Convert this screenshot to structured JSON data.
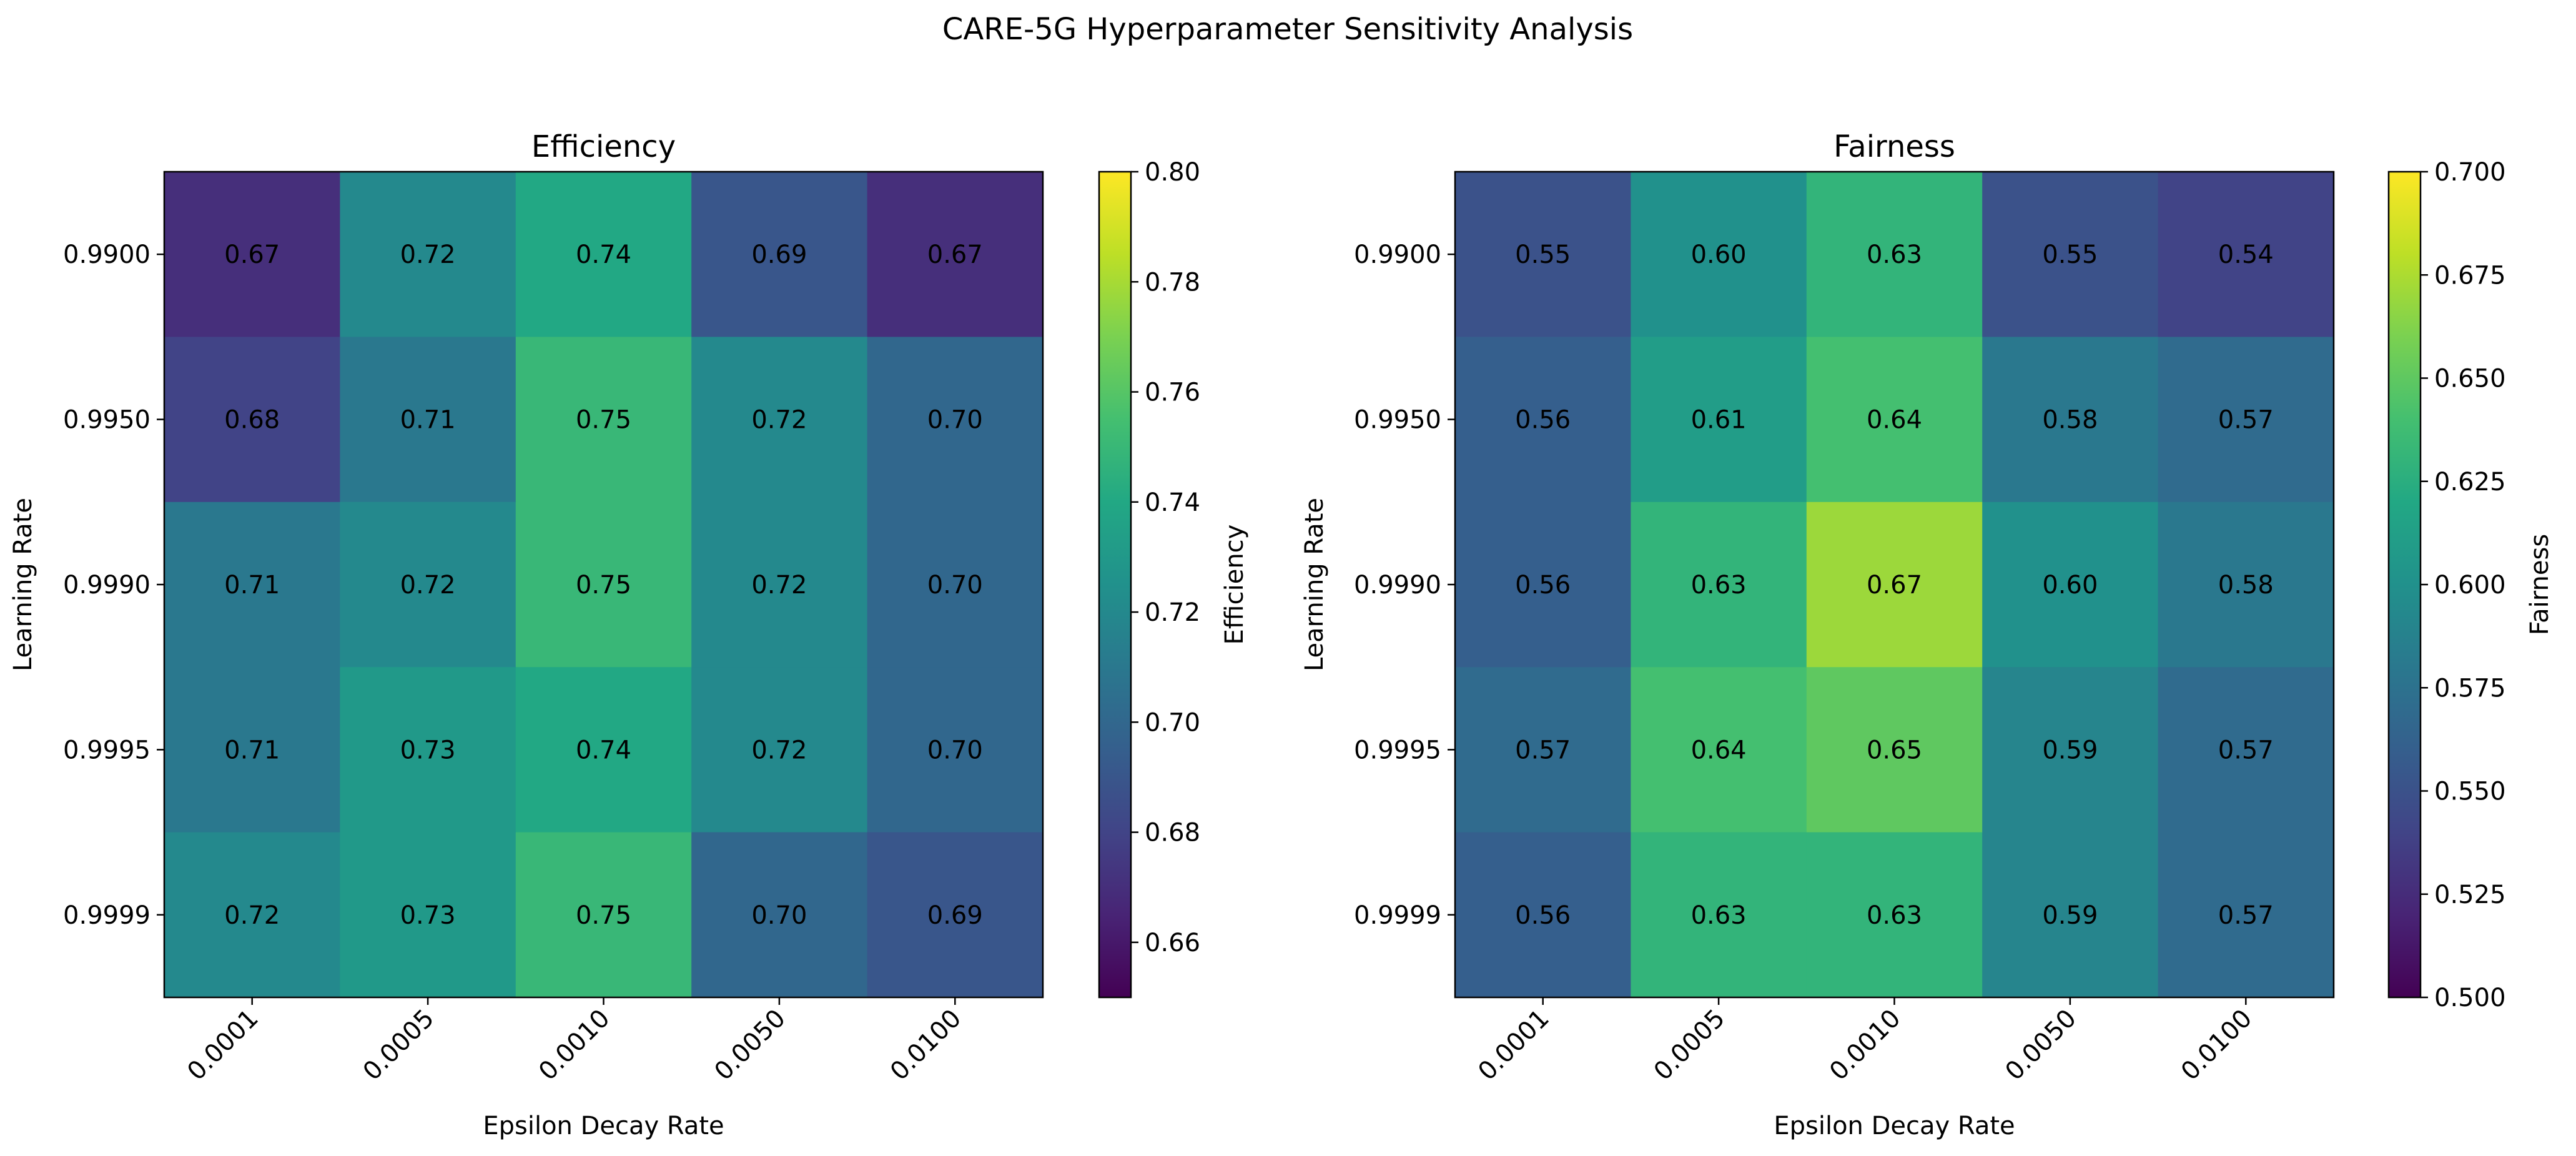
{
  "figure_title": "CARE-5G Hyperparameter Sensitivity Analysis",
  "chart_data": [
    {
      "type": "heatmap",
      "title": "Efficiency",
      "xlabel": "Epsilon Decay Rate",
      "ylabel": "Learning Rate",
      "x": [
        "0.0001",
        "0.0005",
        "0.0010",
        "0.0050",
        "0.0100"
      ],
      "y": [
        "0.9900",
        "0.9950",
        "0.9990",
        "0.9995",
        "0.9999"
      ],
      "values": [
        [
          0.67,
          0.72,
          0.74,
          0.69,
          0.67
        ],
        [
          0.68,
          0.71,
          0.75,
          0.72,
          0.7
        ],
        [
          0.71,
          0.72,
          0.75,
          0.72,
          0.7
        ],
        [
          0.71,
          0.73,
          0.74,
          0.72,
          0.7
        ],
        [
          0.72,
          0.73,
          0.75,
          0.7,
          0.69
        ]
      ],
      "colorbar": {
        "label": "Efficiency",
        "range": [
          0.65,
          0.8
        ],
        "ticks": [
          "0.66",
          "0.68",
          "0.70",
          "0.72",
          "0.74",
          "0.76",
          "0.78",
          "0.80"
        ]
      },
      "colormap": "viridis"
    },
    {
      "type": "heatmap",
      "title": "Fairness",
      "xlabel": "Epsilon Decay Rate",
      "ylabel": "Learning Rate",
      "x": [
        "0.0001",
        "0.0005",
        "0.0010",
        "0.0050",
        "0.0100"
      ],
      "y": [
        "0.9900",
        "0.9950",
        "0.9990",
        "0.9995",
        "0.9999"
      ],
      "values": [
        [
          0.55,
          0.6,
          0.63,
          0.55,
          0.54
        ],
        [
          0.56,
          0.61,
          0.64,
          0.58,
          0.57
        ],
        [
          0.56,
          0.63,
          0.67,
          0.6,
          0.58
        ],
        [
          0.57,
          0.64,
          0.65,
          0.59,
          0.57
        ],
        [
          0.56,
          0.63,
          0.63,
          0.59,
          0.57
        ]
      ],
      "colorbar": {
        "label": "Fairness",
        "range": [
          0.5,
          0.7
        ],
        "ticks": [
          "0.500",
          "0.525",
          "0.550",
          "0.575",
          "0.600",
          "0.625",
          "0.650",
          "0.675",
          "0.700"
        ]
      },
      "colormap": "viridis"
    }
  ]
}
